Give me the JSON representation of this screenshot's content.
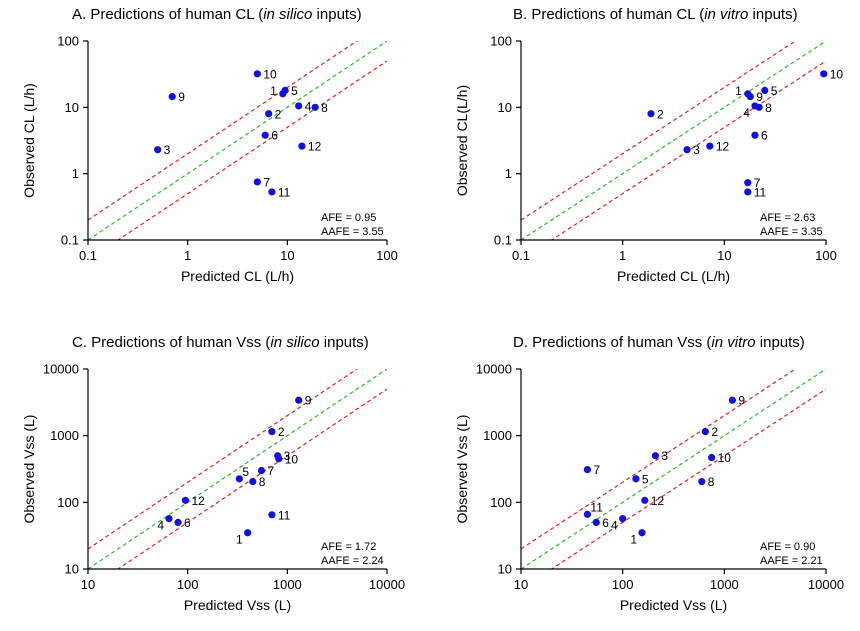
{
  "colors": {
    "point": "#1010e0",
    "identity_line": "#2eb82e",
    "bound_lines": "#e02020",
    "axis": "#000000"
  },
  "chart_data": [
    {
      "type": "scatter",
      "scale": "log",
      "title_prefix": "A. Predictions of human CL (",
      "title_italic": "in silico",
      "title_suffix": " inputs)",
      "xlabel": "Predicted CL (L/h)",
      "ylabel": "Observed CL (L/h)",
      "xlim": [
        0.1,
        100
      ],
      "ylim": [
        0.1,
        100
      ],
      "xticks": [
        "0.1",
        "1",
        "10",
        "100"
      ],
      "yticks": [
        "0.1",
        "1",
        "10",
        "100"
      ],
      "stats": [
        "AFE = 0.95",
        "AAFE = 3.55"
      ],
      "reference_lines": [
        {
          "name": "line of unity",
          "factor": 1
        },
        {
          "name": "2-fold upper",
          "factor": 2
        },
        {
          "name": "2-fold lower",
          "factor": 0.5
        }
      ],
      "points": [
        {
          "label": "1",
          "x": 9.0,
          "y": 16.0,
          "label_side": "left"
        },
        {
          "label": "2",
          "x": 6.5,
          "y": 8.0
        },
        {
          "label": "3",
          "x": 0.5,
          "y": 2.3
        },
        {
          "label": "4",
          "x": 13.0,
          "y": 10.5
        },
        {
          "label": "5",
          "x": 9.5,
          "y": 18.0
        },
        {
          "label": "6",
          "x": 6.0,
          "y": 3.8
        },
        {
          "label": "7",
          "x": 5.0,
          "y": 0.75
        },
        {
          "label": "8",
          "x": 19.0,
          "y": 10.0
        },
        {
          "label": "9",
          "x": 0.7,
          "y": 14.5
        },
        {
          "label": "10",
          "x": 5.0,
          "y": 32.0
        },
        {
          "label": "11",
          "x": 7.0,
          "y": 0.53
        },
        {
          "label": "12",
          "x": 14.0,
          "y": 2.6
        }
      ]
    },
    {
      "type": "scatter",
      "scale": "log",
      "title_prefix": "B. Predictions of human CL (",
      "title_italic": "in vitro",
      "title_suffix": " inputs)",
      "xlabel": "Predicted CL (L/h)",
      "ylabel": "Observed CL(L/h)",
      "xlim": [
        0.1,
        100
      ],
      "ylim": [
        0.1,
        100
      ],
      "xticks": [
        "0.1",
        "1",
        "10",
        "100"
      ],
      "yticks": [
        "0.1",
        "1",
        "10",
        "100"
      ],
      "stats": [
        "AFE = 2.63",
        "AAFE = 3.35"
      ],
      "reference_lines": [
        {
          "name": "line of unity",
          "factor": 1
        },
        {
          "name": "2-fold upper",
          "factor": 2
        },
        {
          "name": "2-fold lower",
          "factor": 0.5
        }
      ],
      "points": [
        {
          "label": "1",
          "x": 17.0,
          "y": 16.0,
          "label_side": "left"
        },
        {
          "label": "2",
          "x": 1.9,
          "y": 8.0
        },
        {
          "label": "3",
          "x": 4.3,
          "y": 2.3
        },
        {
          "label": "4",
          "x": 20.0,
          "y": 10.5,
          "label_side": "below-left"
        },
        {
          "label": "5",
          "x": 25.0,
          "y": 18.0
        },
        {
          "label": "6",
          "x": 20.0,
          "y": 3.8
        },
        {
          "label": "7",
          "x": 17.0,
          "y": 0.73
        },
        {
          "label": "8",
          "x": 22.0,
          "y": 10.0
        },
        {
          "label": "9",
          "x": 18.0,
          "y": 14.5
        },
        {
          "label": "10",
          "x": 95.0,
          "y": 32.0
        },
        {
          "label": "11",
          "x": 17.0,
          "y": 0.53
        },
        {
          "label": "12",
          "x": 7.2,
          "y": 2.6
        }
      ]
    },
    {
      "type": "scatter",
      "scale": "log",
      "title_prefix": "C. Predictions of human Vss (",
      "title_italic": "in silico",
      "title_suffix": " inputs)",
      "xlabel": "Predicted Vss (L)",
      "ylabel": "Observed Vss (L)",
      "xlim": [
        10,
        10000
      ],
      "ylim": [
        10,
        10000
      ],
      "xticks": [
        "10",
        "100",
        "1000",
        "10000"
      ],
      "yticks": [
        "10",
        "100",
        "1000",
        "10000"
      ],
      "stats": [
        "AFE = 1.72",
        "AAFE = 2.24"
      ],
      "reference_lines": [
        {
          "name": "line of unity",
          "factor": 1
        },
        {
          "name": "2-fold upper",
          "factor": 2
        },
        {
          "name": "2-fold lower",
          "factor": 0.5
        }
      ],
      "points": [
        {
          "label": "1",
          "x": 400,
          "y": 35,
          "label_side": "below-left"
        },
        {
          "label": "2",
          "x": 700,
          "y": 1150
        },
        {
          "label": "3",
          "x": 800,
          "y": 500
        },
        {
          "label": "4",
          "x": 65,
          "y": 57,
          "label_side": "below-left"
        },
        {
          "label": "5",
          "x": 330,
          "y": 225,
          "label_side": "above"
        },
        {
          "label": "6",
          "x": 80,
          "y": 50
        },
        {
          "label": "7",
          "x": 550,
          "y": 300
        },
        {
          "label": "8",
          "x": 450,
          "y": 205
        },
        {
          "label": "9",
          "x": 1300,
          "y": 3400
        },
        {
          "label": "10",
          "x": 820,
          "y": 450
        },
        {
          "label": "11",
          "x": 700,
          "y": 65
        },
        {
          "label": "12",
          "x": 95,
          "y": 107
        }
      ]
    },
    {
      "type": "scatter",
      "scale": "log",
      "title_prefix": "D. Predictions of human Vss (",
      "title_italic": "in vitro",
      "title_suffix": " inputs)",
      "xlabel": "Predicted Vss (L)",
      "ylabel": "Observed Vss (L)",
      "xlim": [
        10,
        10000
      ],
      "ylim": [
        10,
        10000
      ],
      "xticks": [
        "10",
        "100",
        "1000",
        "10000"
      ],
      "yticks": [
        "10",
        "100",
        "1000",
        "10000"
      ],
      "stats": [
        "AFE = 0.90",
        "AAFE = 2.21"
      ],
      "reference_lines": [
        {
          "name": "line of unity",
          "factor": 1
        },
        {
          "name": "2-fold upper",
          "factor": 2
        },
        {
          "name": "2-fold lower",
          "factor": 0.5
        }
      ],
      "points": [
        {
          "label": "1",
          "x": 155,
          "y": 35,
          "label_side": "below-left"
        },
        {
          "label": "2",
          "x": 650,
          "y": 1150
        },
        {
          "label": "3",
          "x": 210,
          "y": 500
        },
        {
          "label": "4",
          "x": 100,
          "y": 57,
          "label_side": "below-left"
        },
        {
          "label": "5",
          "x": 135,
          "y": 225
        },
        {
          "label": "6",
          "x": 55,
          "y": 50
        },
        {
          "label": "7",
          "x": 45,
          "y": 310
        },
        {
          "label": "8",
          "x": 600,
          "y": 205
        },
        {
          "label": "9",
          "x": 1200,
          "y": 3400
        },
        {
          "label": "10",
          "x": 750,
          "y": 470
        },
        {
          "label": "11",
          "x": 45,
          "y": 66,
          "label_side": "above"
        },
        {
          "label": "12",
          "x": 165,
          "y": 107
        }
      ]
    }
  ]
}
